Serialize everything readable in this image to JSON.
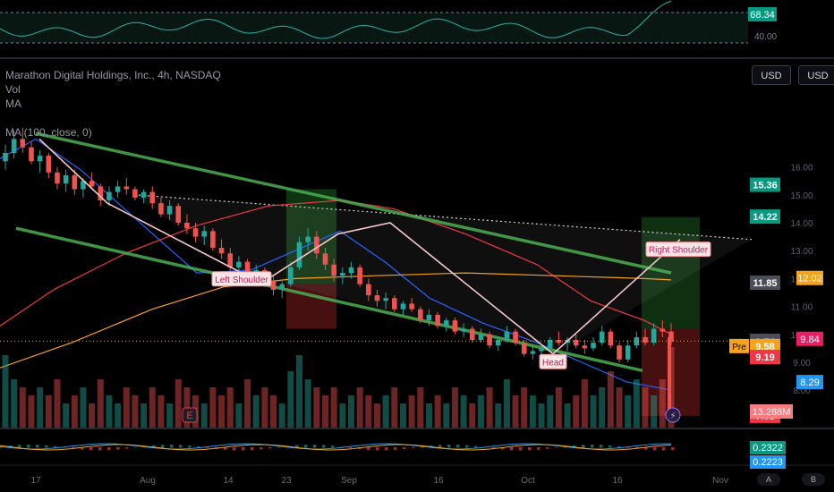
{
  "header": {
    "symbol_line": "Marathon Digital Holdings, Inc., 4h, NASDAQ",
    "vol_label": "Vol",
    "ma_label": "MA",
    "ma2_label": "MA (100, close, 0)"
  },
  "currency_buttons": [
    "USD",
    "USD"
  ],
  "badges": {
    "a": "A",
    "b": "B"
  },
  "pre_label": "Pre",
  "pattern_labels": {
    "left_shoulder": "Left Shoulder",
    "head": "Head",
    "right_shoulder": "Right Shoulder"
  },
  "colors": {
    "up": "#26a69a",
    "down": "#ef5350",
    "channel": "#4caf50",
    "ma_blue": "#2962ff",
    "ma_red": "#f23645",
    "ma_orange": "#f7a21b",
    "hs_line": "#f5c6cb"
  },
  "chart_data": {
    "type": "candlestick",
    "x_ticks": [
      "17",
      "Aug",
      "14",
      "23",
      "Sep",
      "16",
      "Oct",
      "16",
      "Nov"
    ],
    "y_ticks": [
      16.0,
      15.0,
      14.0,
      13.0,
      12.0,
      11.0,
      10.0,
      9.0,
      8.0
    ],
    "price_range": [
      7.3,
      17.5
    ],
    "candles": [
      [
        16.2,
        16.8,
        15.9,
        16.5
      ],
      [
        16.5,
        17.3,
        16.3,
        17.0
      ],
      [
        17.0,
        17.4,
        16.5,
        16.7
      ],
      [
        16.7,
        16.9,
        16.1,
        16.2
      ],
      [
        16.2,
        16.6,
        15.8,
        16.4
      ],
      [
        16.4,
        16.5,
        15.6,
        15.8
      ],
      [
        15.8,
        16.0,
        15.2,
        15.4
      ],
      [
        15.4,
        15.9,
        15.1,
        15.7
      ],
      [
        15.7,
        15.9,
        15.0,
        15.2
      ],
      [
        15.2,
        15.6,
        14.9,
        15.5
      ],
      [
        15.5,
        15.8,
        15.2,
        15.3
      ],
      [
        15.3,
        15.4,
        14.6,
        14.8
      ],
      [
        14.8,
        15.3,
        14.6,
        15.1
      ],
      [
        15.1,
        15.5,
        14.9,
        15.3
      ],
      [
        15.3,
        15.6,
        15.0,
        15.2
      ],
      [
        15.2,
        15.3,
        14.8,
        14.9
      ],
      [
        14.9,
        15.2,
        14.7,
        15.1
      ],
      [
        15.1,
        15.3,
        14.5,
        14.7
      ],
      [
        14.7,
        14.9,
        14.2,
        14.3
      ],
      [
        14.3,
        14.8,
        14.1,
        14.6
      ],
      [
        14.6,
        14.7,
        13.9,
        14.0
      ],
      [
        14.0,
        14.3,
        13.6,
        13.8
      ],
      [
        13.8,
        14.0,
        13.3,
        13.5
      ],
      [
        13.5,
        13.9,
        13.2,
        13.7
      ],
      [
        13.7,
        13.8,
        13.0,
        13.1
      ],
      [
        13.1,
        13.4,
        12.7,
        12.9
      ],
      [
        12.9,
        13.1,
        12.2,
        12.4
      ],
      [
        12.4,
        12.8,
        12.1,
        12.6
      ],
      [
        12.6,
        12.7,
        11.9,
        12.0
      ],
      [
        12.0,
        12.5,
        11.8,
        12.3
      ],
      [
        12.3,
        12.4,
        11.7,
        11.9
      ],
      [
        11.9,
        12.1,
        11.4,
        11.6
      ],
      [
        11.6,
        11.9,
        11.3,
        11.8
      ],
      [
        11.8,
        12.6,
        11.7,
        12.4
      ],
      [
        12.4,
        13.5,
        12.3,
        13.3
      ],
      [
        13.3,
        13.8,
        13.0,
        13.5
      ],
      [
        13.5,
        13.7,
        12.7,
        12.9
      ],
      [
        12.9,
        13.1,
        12.3,
        12.5
      ],
      [
        12.5,
        12.7,
        11.9,
        12.1
      ],
      [
        12.1,
        12.4,
        11.8,
        12.2
      ],
      [
        12.2,
        12.6,
        12.0,
        12.4
      ],
      [
        12.4,
        12.5,
        11.7,
        11.8
      ],
      [
        11.8,
        12.0,
        11.2,
        11.4
      ],
      [
        11.4,
        11.6,
        11.0,
        11.2
      ],
      [
        11.2,
        11.5,
        10.9,
        11.3
      ],
      [
        11.3,
        11.4,
        10.8,
        10.9
      ],
      [
        10.9,
        11.2,
        10.7,
        11.1
      ],
      [
        11.1,
        11.3,
        10.8,
        10.9
      ],
      [
        10.9,
        11.0,
        10.4,
        10.5
      ],
      [
        10.5,
        10.9,
        10.3,
        10.7
      ],
      [
        10.7,
        10.8,
        10.2,
        10.3
      ],
      [
        10.3,
        10.6,
        10.1,
        10.5
      ],
      [
        10.5,
        10.6,
        10.0,
        10.1
      ],
      [
        10.1,
        10.4,
        9.9,
        10.2
      ],
      [
        10.2,
        10.3,
        9.7,
        9.8
      ],
      [
        9.8,
        10.2,
        9.7,
        10.0
      ],
      [
        10.0,
        10.1,
        9.5,
        9.6
      ],
      [
        9.6,
        9.9,
        9.4,
        9.8
      ],
      [
        9.8,
        10.3,
        9.7,
        10.1
      ],
      [
        10.1,
        10.2,
        9.6,
        9.7
      ],
      [
        9.7,
        9.8,
        9.2,
        9.3
      ],
      [
        9.3,
        9.6,
        9.1,
        9.4
      ],
      [
        9.4,
        9.6,
        9.1,
        9.5
      ],
      [
        9.5,
        9.9,
        9.4,
        9.8
      ],
      [
        9.8,
        10.1,
        9.6,
        9.7
      ],
      [
        9.7,
        9.9,
        9.4,
        9.8
      ],
      [
        9.8,
        10.0,
        9.5,
        9.6
      ],
      [
        9.6,
        9.8,
        9.3,
        9.5
      ],
      [
        9.5,
        9.9,
        9.4,
        9.7
      ],
      [
        9.7,
        10.3,
        9.6,
        10.1
      ],
      [
        10.1,
        10.2,
        9.5,
        9.6
      ],
      [
        9.6,
        9.7,
        9.0,
        9.1
      ],
      [
        9.1,
        9.8,
        9.0,
        9.6
      ],
      [
        9.6,
        10.1,
        9.5,
        9.9
      ],
      [
        9.9,
        10.2,
        9.6,
        9.7
      ],
      [
        9.7,
        10.4,
        9.6,
        10.2
      ],
      [
        10.2,
        10.5,
        9.9,
        10.1
      ],
      [
        10.1,
        10.4,
        9.6,
        9.74
      ]
    ],
    "volume": [
      0.9,
      0.6,
      0.5,
      0.4,
      0.5,
      0.4,
      0.6,
      0.3,
      0.4,
      0.5,
      0.3,
      0.6,
      0.4,
      0.3,
      0.5,
      0.4,
      0.3,
      0.5,
      0.4,
      0.3,
      0.6,
      0.5,
      0.4,
      0.3,
      0.5,
      0.4,
      0.5,
      0.3,
      0.6,
      0.4,
      0.5,
      0.4,
      0.3,
      0.7,
      0.9,
      0.6,
      0.5,
      0.4,
      0.5,
      0.3,
      0.4,
      0.5,
      0.4,
      0.3,
      0.4,
      0.5,
      0.3,
      0.4,
      0.5,
      0.3,
      0.4,
      0.3,
      0.5,
      0.4,
      0.3,
      0.4,
      0.5,
      0.3,
      0.6,
      0.4,
      0.5,
      0.4,
      0.3,
      0.4,
      0.5,
      0.3,
      0.4,
      0.6,
      0.4,
      0.5,
      0.7,
      0.5,
      0.4,
      0.6,
      0.5,
      0.4,
      0.6,
      1.0
    ],
    "price_labels": [
      {
        "text": "15.36",
        "value": 15.36,
        "color": "#089981"
      },
      {
        "text": "14.22",
        "value": 14.22,
        "color": "#089981"
      },
      {
        "text": "11.85",
        "value": 11.85,
        "color": "#4a4e58"
      },
      {
        "text": "9.76",
        "value": 9.76,
        "color": "#f23645"
      },
      {
        "text": "9.74",
        "value": 9.74,
        "color": "#4a4e58"
      },
      {
        "text": "9.58",
        "value": 9.58,
        "color": "#f7a21b"
      },
      {
        "text": "9.19",
        "value": 9.19,
        "color": "#f23645"
      },
      {
        "text": "7.08",
        "value": 7.08,
        "color": "#f23645"
      }
    ],
    "right_labels": [
      {
        "text": "12.02",
        "value": 12.02,
        "color": "#f7a21b"
      },
      {
        "text": "9.84",
        "value": 9.84,
        "color": "#e91e63"
      },
      {
        "text": "8.29",
        "value": 8.29,
        "color": "#2196f3"
      }
    ],
    "volume_label": {
      "text": "13.288M",
      "color": "#f77c80"
    },
    "rsi": {
      "value_text": "68.34",
      "level_text": "40.00"
    },
    "macd": {
      "values": [
        "0.2322",
        "0.2223"
      ]
    }
  }
}
